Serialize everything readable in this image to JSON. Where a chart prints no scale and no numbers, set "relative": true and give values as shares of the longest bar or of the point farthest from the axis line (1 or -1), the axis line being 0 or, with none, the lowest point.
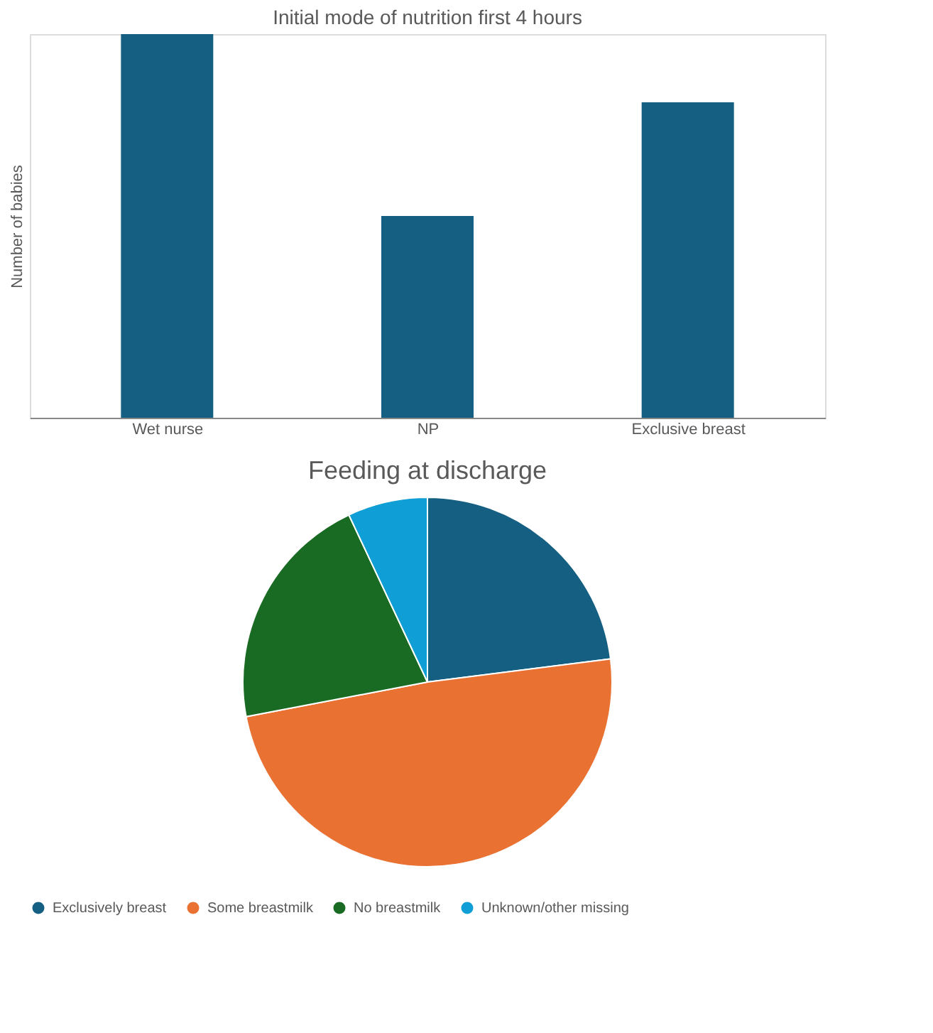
{
  "chart_data": [
    {
      "type": "bar",
      "title": "Initial mode of nutrition first 4 hours",
      "ylabel": "Number of babies",
      "categories": [
        "Wet nurse",
        "NP",
        "Exclusive breast"
      ],
      "values": [
        1,
        0.526,
        0.822
      ],
      "color": "#156082",
      "relative": true
    },
    {
      "type": "pie",
      "title": "Feeding at discharge",
      "categories": [
        "Exclusively breast",
        "Some breastmilk",
        "No breastmilk",
        "Unknown/other missing"
      ],
      "values": [
        23,
        49,
        21,
        7
      ],
      "colors": [
        "#156082",
        "#e97132",
        "#196b24",
        "#0f9ed5"
      ],
      "legend": "bottom"
    }
  ]
}
